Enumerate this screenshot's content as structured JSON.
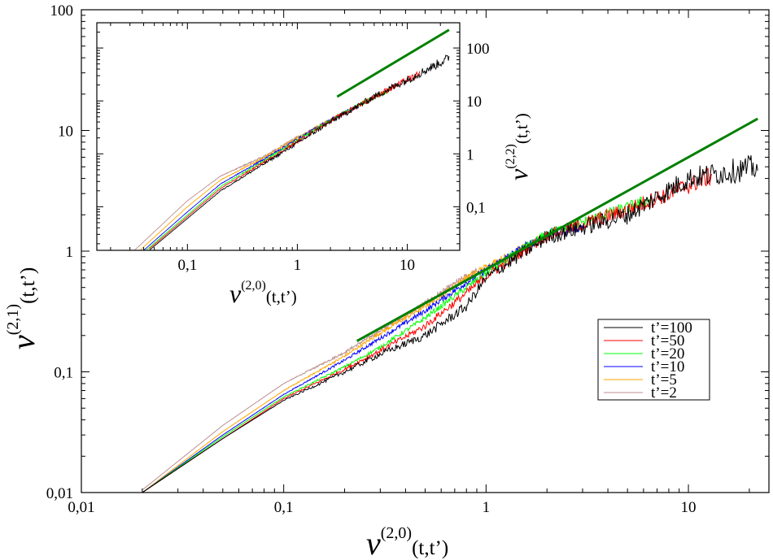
{
  "chart_data": [
    {
      "type": "line",
      "role": "main",
      "x_scale": "log",
      "y_scale": "log",
      "xlim": [
        0.01,
        25
      ],
      "ylim": [
        0.01,
        100
      ],
      "x_ticks": [
        0.01,
        0.1,
        1,
        10
      ],
      "x_tick_labels": [
        "0,01",
        "0,1",
        "1",
        "10"
      ],
      "y_ticks": [
        0.01,
        0.1,
        1,
        10,
        100
      ],
      "y_tick_labels": [
        "0,01",
        "0,1",
        "1",
        "10",
        "100"
      ],
      "xlabel": {
        "base": "ν",
        "sup": "(2,0)",
        "arg": "(t,t’)"
      },
      "ylabel": {
        "base": "ν",
        "sup": "(2,1)",
        "arg": "(t,t’)"
      },
      "legend_position": "right",
      "series": [
        {
          "name": "t’=100",
          "color": "#000000",
          "x_start": 0.02,
          "x_end": 22,
          "anchors": [
            [
              0.02,
              0.01
            ],
            [
              0.05,
              0.028
            ],
            [
              0.1,
              0.058
            ],
            [
              0.2,
              0.1
            ],
            [
              0.3,
              0.14
            ],
            [
              0.5,
              0.2
            ],
            [
              0.8,
              0.35
            ],
            [
              1.0,
              0.6
            ],
            [
              2.0,
              1.3
            ],
            [
              5.0,
              2.0
            ],
            [
              10,
              4.0
            ],
            [
              22,
              5.0
            ]
          ]
        },
        {
          "name": "t’=50",
          "color": "#ff0000",
          "x_start": 0.02,
          "x_end": 13,
          "anchors": [
            [
              0.02,
              0.01
            ],
            [
              0.05,
              0.028
            ],
            [
              0.1,
              0.06
            ],
            [
              0.2,
              0.105
            ],
            [
              0.3,
              0.15
            ],
            [
              0.5,
              0.24
            ],
            [
              0.8,
              0.45
            ],
            [
              1.0,
              0.62
            ],
            [
              2.0,
              1.35
            ],
            [
              5.0,
              2.2
            ],
            [
              10,
              3.5
            ],
            [
              13,
              4.2
            ]
          ]
        },
        {
          "name": "t’=20",
          "color": "#00ff00",
          "x_start": 0.02,
          "x_end": 6.5,
          "anchors": [
            [
              0.02,
              0.01
            ],
            [
              0.05,
              0.029
            ],
            [
              0.1,
              0.062
            ],
            [
              0.2,
              0.11
            ],
            [
              0.3,
              0.16
            ],
            [
              0.5,
              0.28
            ],
            [
              0.8,
              0.5
            ],
            [
              1.0,
              0.66
            ],
            [
              2.0,
              1.4
            ],
            [
              5.0,
              2.3
            ],
            [
              6.5,
              2.7
            ]
          ]
        },
        {
          "name": "t’=10",
          "color": "#0000ff",
          "x_start": 0.02,
          "x_end": 3.0,
          "anchors": [
            [
              0.02,
              0.01
            ],
            [
              0.05,
              0.03
            ],
            [
              0.1,
              0.065
            ],
            [
              0.2,
              0.125
            ],
            [
              0.3,
              0.19
            ],
            [
              0.5,
              0.32
            ],
            [
              0.8,
              0.55
            ],
            [
              1.0,
              0.7
            ],
            [
              2.0,
              1.4
            ],
            [
              3.0,
              1.6
            ]
          ]
        },
        {
          "name": "t’=5",
          "color": "#ffa500",
          "x_start": 0.02,
          "x_end": 1.6,
          "anchors": [
            [
              0.02,
              0.01
            ],
            [
              0.05,
              0.032
            ],
            [
              0.1,
              0.07
            ],
            [
              0.2,
              0.135
            ],
            [
              0.3,
              0.21
            ],
            [
              0.5,
              0.35
            ],
            [
              0.8,
              0.6
            ],
            [
              1.0,
              0.74
            ],
            [
              1.6,
              1.1
            ]
          ]
        },
        {
          "name": "t’=2",
          "color": "#bc8f8f",
          "x_start": 0.02,
          "x_end": 0.9,
          "anchors": [
            [
              0.02,
              0.0105
            ],
            [
              0.05,
              0.036
            ],
            [
              0.1,
              0.08
            ],
            [
              0.2,
              0.145
            ],
            [
              0.3,
              0.22
            ],
            [
              0.5,
              0.37
            ],
            [
              0.8,
              0.62
            ],
            [
              0.9,
              0.68
            ]
          ]
        }
      ],
      "reference_line": {
        "color": "#008000",
        "points": [
          [
            0.23,
            0.18
          ],
          [
            22,
            12.5
          ]
        ]
      }
    },
    {
      "type": "line",
      "role": "inset",
      "x_scale": "log",
      "y_scale": "log",
      "xlim": [
        0.015,
        30
      ],
      "ylim": [
        0.015,
        300
      ],
      "x_ticks": [
        0.1,
        1,
        10
      ],
      "x_tick_labels": [
        "0,1",
        "1",
        "10"
      ],
      "y_ticks": [
        0.1,
        1,
        10,
        100
      ],
      "y_tick_labels": [
        "0,1",
        "1",
        "10",
        "100"
      ],
      "xlabel": {
        "base": "ν",
        "sup": "(2,0)",
        "arg": "(t,t’)"
      },
      "ylabel": {
        "base": "ν",
        "sup": "(2,2)",
        "arg": "(t,t’)"
      },
      "series": [
        {
          "name": "t’=100",
          "color": "#000000",
          "x_start": 0.045,
          "x_end": 24,
          "anchors": [
            [
              0.045,
              0.015
            ],
            [
              0.1,
              0.06
            ],
            [
              0.2,
              0.2
            ],
            [
              0.5,
              0.65
            ],
            [
              1.0,
              1.6
            ],
            [
              2.0,
              4.0
            ],
            [
              5.0,
              12
            ],
            [
              10,
              25
            ],
            [
              24,
              65
            ]
          ]
        },
        {
          "name": "t’=50",
          "color": "#ff0000",
          "x_start": 0.045,
          "x_end": 13,
          "anchors": [
            [
              0.045,
              0.016
            ],
            [
              0.1,
              0.065
            ],
            [
              0.2,
              0.22
            ],
            [
              0.5,
              0.7
            ],
            [
              1.0,
              1.7
            ],
            [
              2.0,
              4.2
            ],
            [
              5.0,
              12
            ],
            [
              10,
              25
            ],
            [
              13,
              32
            ]
          ]
        },
        {
          "name": "t’=20",
          "color": "#00ff00",
          "x_start": 0.042,
          "x_end": 7,
          "anchors": [
            [
              0.042,
              0.015
            ],
            [
              0.1,
              0.07
            ],
            [
              0.2,
              0.24
            ],
            [
              0.5,
              0.75
            ],
            [
              1.0,
              1.8
            ],
            [
              2.0,
              4.3
            ],
            [
              5.0,
              12
            ],
            [
              7,
              16
            ]
          ]
        },
        {
          "name": "t’=10",
          "color": "#0000ff",
          "x_start": 0.04,
          "x_end": 4,
          "anchors": [
            [
              0.04,
              0.015
            ],
            [
              0.1,
              0.08
            ],
            [
              0.2,
              0.27
            ],
            [
              0.5,
              0.8
            ],
            [
              1.0,
              1.9
            ],
            [
              2.0,
              4.4
            ],
            [
              4.0,
              9
            ]
          ]
        },
        {
          "name": "t’=5",
          "color": "#ffa500",
          "x_start": 0.037,
          "x_end": 2,
          "anchors": [
            [
              0.037,
              0.015
            ],
            [
              0.1,
              0.1
            ],
            [
              0.2,
              0.32
            ],
            [
              0.5,
              0.85
            ],
            [
              1.0,
              2.0
            ],
            [
              2.0,
              4.4
            ]
          ]
        },
        {
          "name": "t’=2",
          "color": "#bc8f8f",
          "x_start": 0.033,
          "x_end": 1,
          "anchors": [
            [
              0.033,
              0.015
            ],
            [
              0.1,
              0.13
            ],
            [
              0.2,
              0.38
            ],
            [
              0.5,
              0.9
            ],
            [
              1.0,
              2.1
            ]
          ]
        }
      ],
      "reference_line": {
        "color": "#008000",
        "points": [
          [
            2.3,
            12
          ],
          [
            24,
            220
          ]
        ]
      }
    }
  ]
}
